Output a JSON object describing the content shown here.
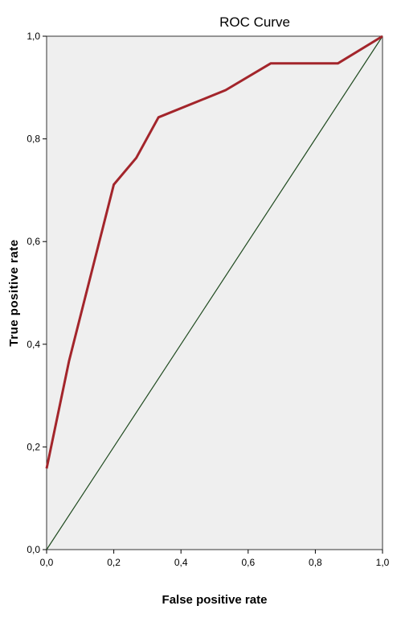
{
  "chart_data": {
    "type": "line",
    "title": "ROC Curve",
    "xlabel": "False positive rate",
    "ylabel": "True positive rate",
    "xlim": [
      0,
      1
    ],
    "ylim": [
      0,
      1
    ],
    "x_ticks": [
      "0,0",
      "0,2",
      "0,4",
      "0,6",
      "0,8",
      "1,0"
    ],
    "y_ticks": [
      "0,0",
      "0,2",
      "0,4",
      "0,6",
      "0,8",
      "1,0"
    ],
    "grid": false,
    "colors": {
      "roc": "#a3252b",
      "reference": "#1f4a1f",
      "plot_bg": "#efefef"
    },
    "series": [
      {
        "x": [
          0.0,
          0.0,
          0.067,
          0.2,
          0.267,
          0.333,
          0.533,
          0.667,
          0.867,
          1.0
        ],
        "y": [
          0.158,
          0.158,
          0.368,
          0.711,
          0.763,
          0.842,
          0.895,
          0.947,
          0.947,
          1.0
        ]
      },
      {
        "x": [
          0.0,
          1.0
        ],
        "y": [
          0.0,
          1.0
        ]
      }
    ]
  }
}
